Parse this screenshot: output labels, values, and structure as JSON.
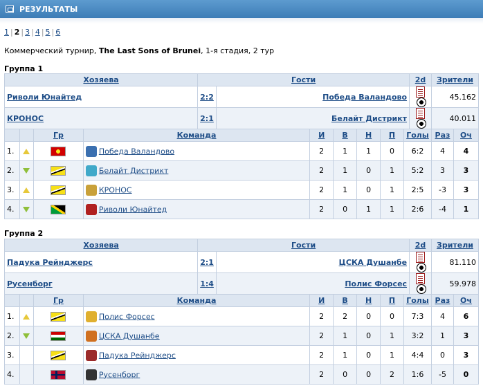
{
  "header": {
    "title": "РЕЗУЛЬТАТЫ",
    "icon": "results-icon"
  },
  "pager": {
    "pages": [
      "1",
      "2",
      "3",
      "4",
      "5",
      "6"
    ],
    "current": "2"
  },
  "info": {
    "prefix": "Коммерческий турнир,",
    "tournament": "The Last Sons of Brunei",
    "suffix": ", 1-я стадия, 2 тур"
  },
  "headers": {
    "home": "Хозяева",
    "guests": "Гости",
    "d2": "2d",
    "spectators": "Зрители",
    "flag": "Гр",
    "team": "Команда",
    "played": "И",
    "won": "В",
    "drawn": "Н",
    "lost": "П",
    "goals": "Голы",
    "diff": "Раз",
    "points": "Оч"
  },
  "groups": [
    {
      "title": "Группа 1",
      "matches": [
        {
          "home": "Риволи Юнайтед",
          "score": "2:2",
          "guest": "Победа Валандово",
          "spectators": "45.162"
        },
        {
          "home": "КРОНОС",
          "score": "2:1",
          "guest": "Белайт Дистрикт",
          "spectators": "40.011"
        }
      ],
      "standings": [
        {
          "pos": "1.",
          "trend": "up",
          "flag": "macedonia",
          "team": "Победа Валандово",
          "crest": "#3a6fb0",
          "p": "2",
          "w": "1",
          "d": "1",
          "l": "0",
          "goals": "6:2",
          "diff": "4",
          "pts": "4"
        },
        {
          "pos": "2.",
          "trend": "down",
          "flag": "brunei",
          "team": "Белайт Дистрикт",
          "crest": "#40a9c9",
          "p": "2",
          "w": "1",
          "d": "0",
          "l": "1",
          "goals": "5:2",
          "diff": "3",
          "pts": "3"
        },
        {
          "pos": "3.",
          "trend": "up",
          "flag": "brunei",
          "team": "КРОНОС",
          "crest": "#c9a13a",
          "p": "2",
          "w": "1",
          "d": "0",
          "l": "1",
          "goals": "2:5",
          "diff": "-3",
          "pts": "3"
        },
        {
          "pos": "4.",
          "trend": "down",
          "flag": "jamaica",
          "team": "Риволи Юнайтед",
          "crest": "#b02020",
          "p": "2",
          "w": "0",
          "d": "1",
          "l": "1",
          "goals": "2:6",
          "diff": "-4",
          "pts": "1"
        }
      ]
    },
    {
      "title": "Группа 2",
      "matches": [
        {
          "home": "Падука Рейнджерс",
          "score": "2:1",
          "guest": "ЦСКА Душанбе",
          "spectators": "81.110"
        },
        {
          "home": "Русенборг",
          "score": "1:4",
          "guest": "Полис Форсес",
          "spectators": "59.978"
        }
      ],
      "standings": [
        {
          "pos": "1.",
          "trend": "up",
          "flag": "brunei",
          "team": "Полис Форсес",
          "crest": "#e0b030",
          "p": "2",
          "w": "2",
          "d": "0",
          "l": "0",
          "goals": "7:3",
          "diff": "4",
          "pts": "6"
        },
        {
          "pos": "2.",
          "trend": "down",
          "flag": "tajik",
          "team": "ЦСКА Душанбе",
          "crest": "#d07020",
          "p": "2",
          "w": "1",
          "d": "0",
          "l": "1",
          "goals": "3:2",
          "diff": "1",
          "pts": "3"
        },
        {
          "pos": "3.",
          "trend": "",
          "flag": "brunei",
          "team": "Падука Рейнджерс",
          "crest": "#9b2b2b",
          "p": "2",
          "w": "1",
          "d": "0",
          "l": "1",
          "goals": "4:4",
          "diff": "0",
          "pts": "3"
        },
        {
          "pos": "4.",
          "trend": "",
          "flag": "norway",
          "team": "Русенборг",
          "crest": "#333333",
          "p": "2",
          "w": "0",
          "d": "0",
          "l": "2",
          "goals": "1:6",
          "diff": "-5",
          "pts": "0"
        }
      ]
    }
  ]
}
